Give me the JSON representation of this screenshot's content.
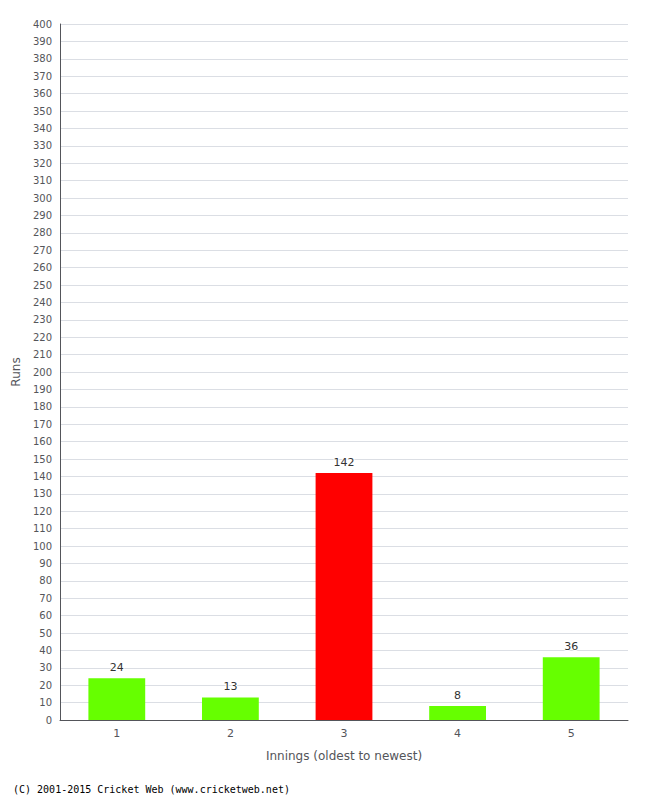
{
  "chart_data": {
    "type": "bar",
    "categories": [
      1,
      2,
      3,
      4,
      5
    ],
    "values": [
      24,
      13,
      142,
      8,
      36
    ],
    "colors": [
      "#66ff00",
      "#66ff00",
      "#ff0000",
      "#66ff00",
      "#66ff00"
    ],
    "xlabel": "Innings (oldest to newest)",
    "ylabel": "Runs",
    "ylim": [
      0,
      400
    ],
    "yticks": [
      0,
      10,
      20,
      30,
      40,
      50,
      60,
      70,
      80,
      90,
      100,
      110,
      120,
      130,
      140,
      150,
      160,
      170,
      180,
      190,
      200,
      210,
      220,
      230,
      240,
      250,
      260,
      270,
      280,
      290,
      300,
      310,
      320,
      330,
      340,
      350,
      360,
      370,
      380,
      390,
      400
    ],
    "grid": true,
    "data_labels": true,
    "annotations": [
      "(C) 2001-2015 Cricket Web (www.cricketweb.net)"
    ]
  }
}
